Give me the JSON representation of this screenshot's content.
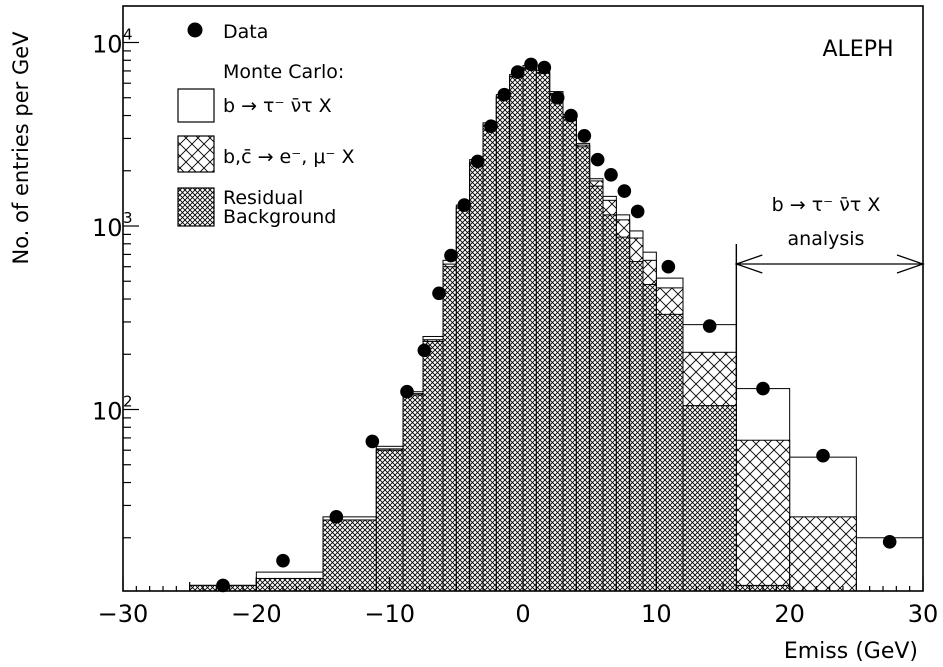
{
  "chart_data": {
    "type": "histogram",
    "title": "",
    "experiment_label": "ALEPH",
    "xlabel": "Emiss (GeV)",
    "ylabel": "No. of entries per GeV",
    "xlim": [
      -30,
      30
    ],
    "ylim": [
      10,
      15000
    ],
    "yscale": "log",
    "x_ticks": [
      -30,
      -20,
      -10,
      0,
      10,
      20,
      30
    ],
    "x_tick_labels": [
      "−30",
      "−20",
      "−10",
      "0",
      "10",
      "20",
      "30"
    ],
    "y_ticks": [
      100,
      1000,
      10000
    ],
    "y_tick_labels": [
      "10",
      "10",
      "10"
    ],
    "y_tick_exponents": [
      "2",
      "3",
      "4"
    ],
    "legend": {
      "placement": "top-left",
      "data": "Data",
      "mc_header": "Monte Carlo:",
      "signal": "b → τ⁻ ν̄τ X",
      "bc_background": "b,c̄ → e⁻, μ⁻ X",
      "residual_line1": "Residual",
      "residual_line2": "Background"
    },
    "annotation": {
      "line1": "b → τ⁻ ν̄τ X",
      "line2": "analysis",
      "x_range": [
        16,
        30
      ]
    },
    "colors": {
      "data": "#000000",
      "hist_outline": "#000000",
      "background": "#ffffff"
    },
    "bin_edges": [
      -25,
      -20,
      -15,
      -11,
      -9,
      -7.5,
      -6,
      -5,
      -4,
      -3,
      -2,
      -1,
      0,
      1,
      2,
      3,
      4,
      5,
      6,
      7,
      8,
      9,
      10,
      12,
      16,
      20,
      25,
      30
    ],
    "series": [
      {
        "name": "Residual Background",
        "style": "dense-crosshatch",
        "values": [
          11,
          12,
          25,
          60,
          120,
          235,
          600,
          1250,
          2200,
          3500,
          5000,
          6500,
          7200,
          6800,
          5200,
          3900,
          2700,
          1650,
          1150,
          870,
          640,
          480,
          330,
          105,
          11,
          9,
          9
        ]
      },
      {
        "name": "b,c̄ → e⁻, μ⁻ X",
        "style": "crosshatch",
        "values": [
          11,
          12,
          25,
          61,
          122,
          240,
          620,
          1270,
          2230,
          3550,
          5050,
          6560,
          7280,
          6880,
          5270,
          3960,
          2760,
          1760,
          1380,
          1080,
          860,
          650,
          460,
          205,
          68,
          26,
          9
        ]
      },
      {
        "name": "b → τ⁻ ν̄τ X",
        "style": "open",
        "values": [
          11,
          13,
          26,
          63,
          125,
          250,
          650,
          1300,
          2300,
          3650,
          5200,
          6700,
          7500,
          7050,
          5400,
          4050,
          2820,
          1810,
          1450,
          1150,
          940,
          720,
          520,
          290,
          130,
          55,
          20
        ]
      },
      {
        "name": "Data",
        "style": "points",
        "x": [
          -22.5,
          -18,
          -14,
          -11.3,
          -8.7,
          -7.4,
          -6.3,
          -5.4,
          -4.4,
          -3.4,
          -2.4,
          -1.4,
          -0.4,
          0.6,
          1.6,
          2.6,
          3.6,
          4.6,
          5.6,
          6.6,
          7.6,
          8.6,
          10.9,
          14,
          18,
          22.5,
          27.5
        ],
        "y": [
          11,
          15,
          26,
          67,
          125,
          210,
          430,
          690,
          1300,
          2250,
          3500,
          5200,
          6900,
          7600,
          7300,
          5000,
          4000,
          3100,
          2300,
          1900,
          1550,
          1200,
          600,
          285,
          130,
          56,
          19
        ]
      }
    ]
  }
}
